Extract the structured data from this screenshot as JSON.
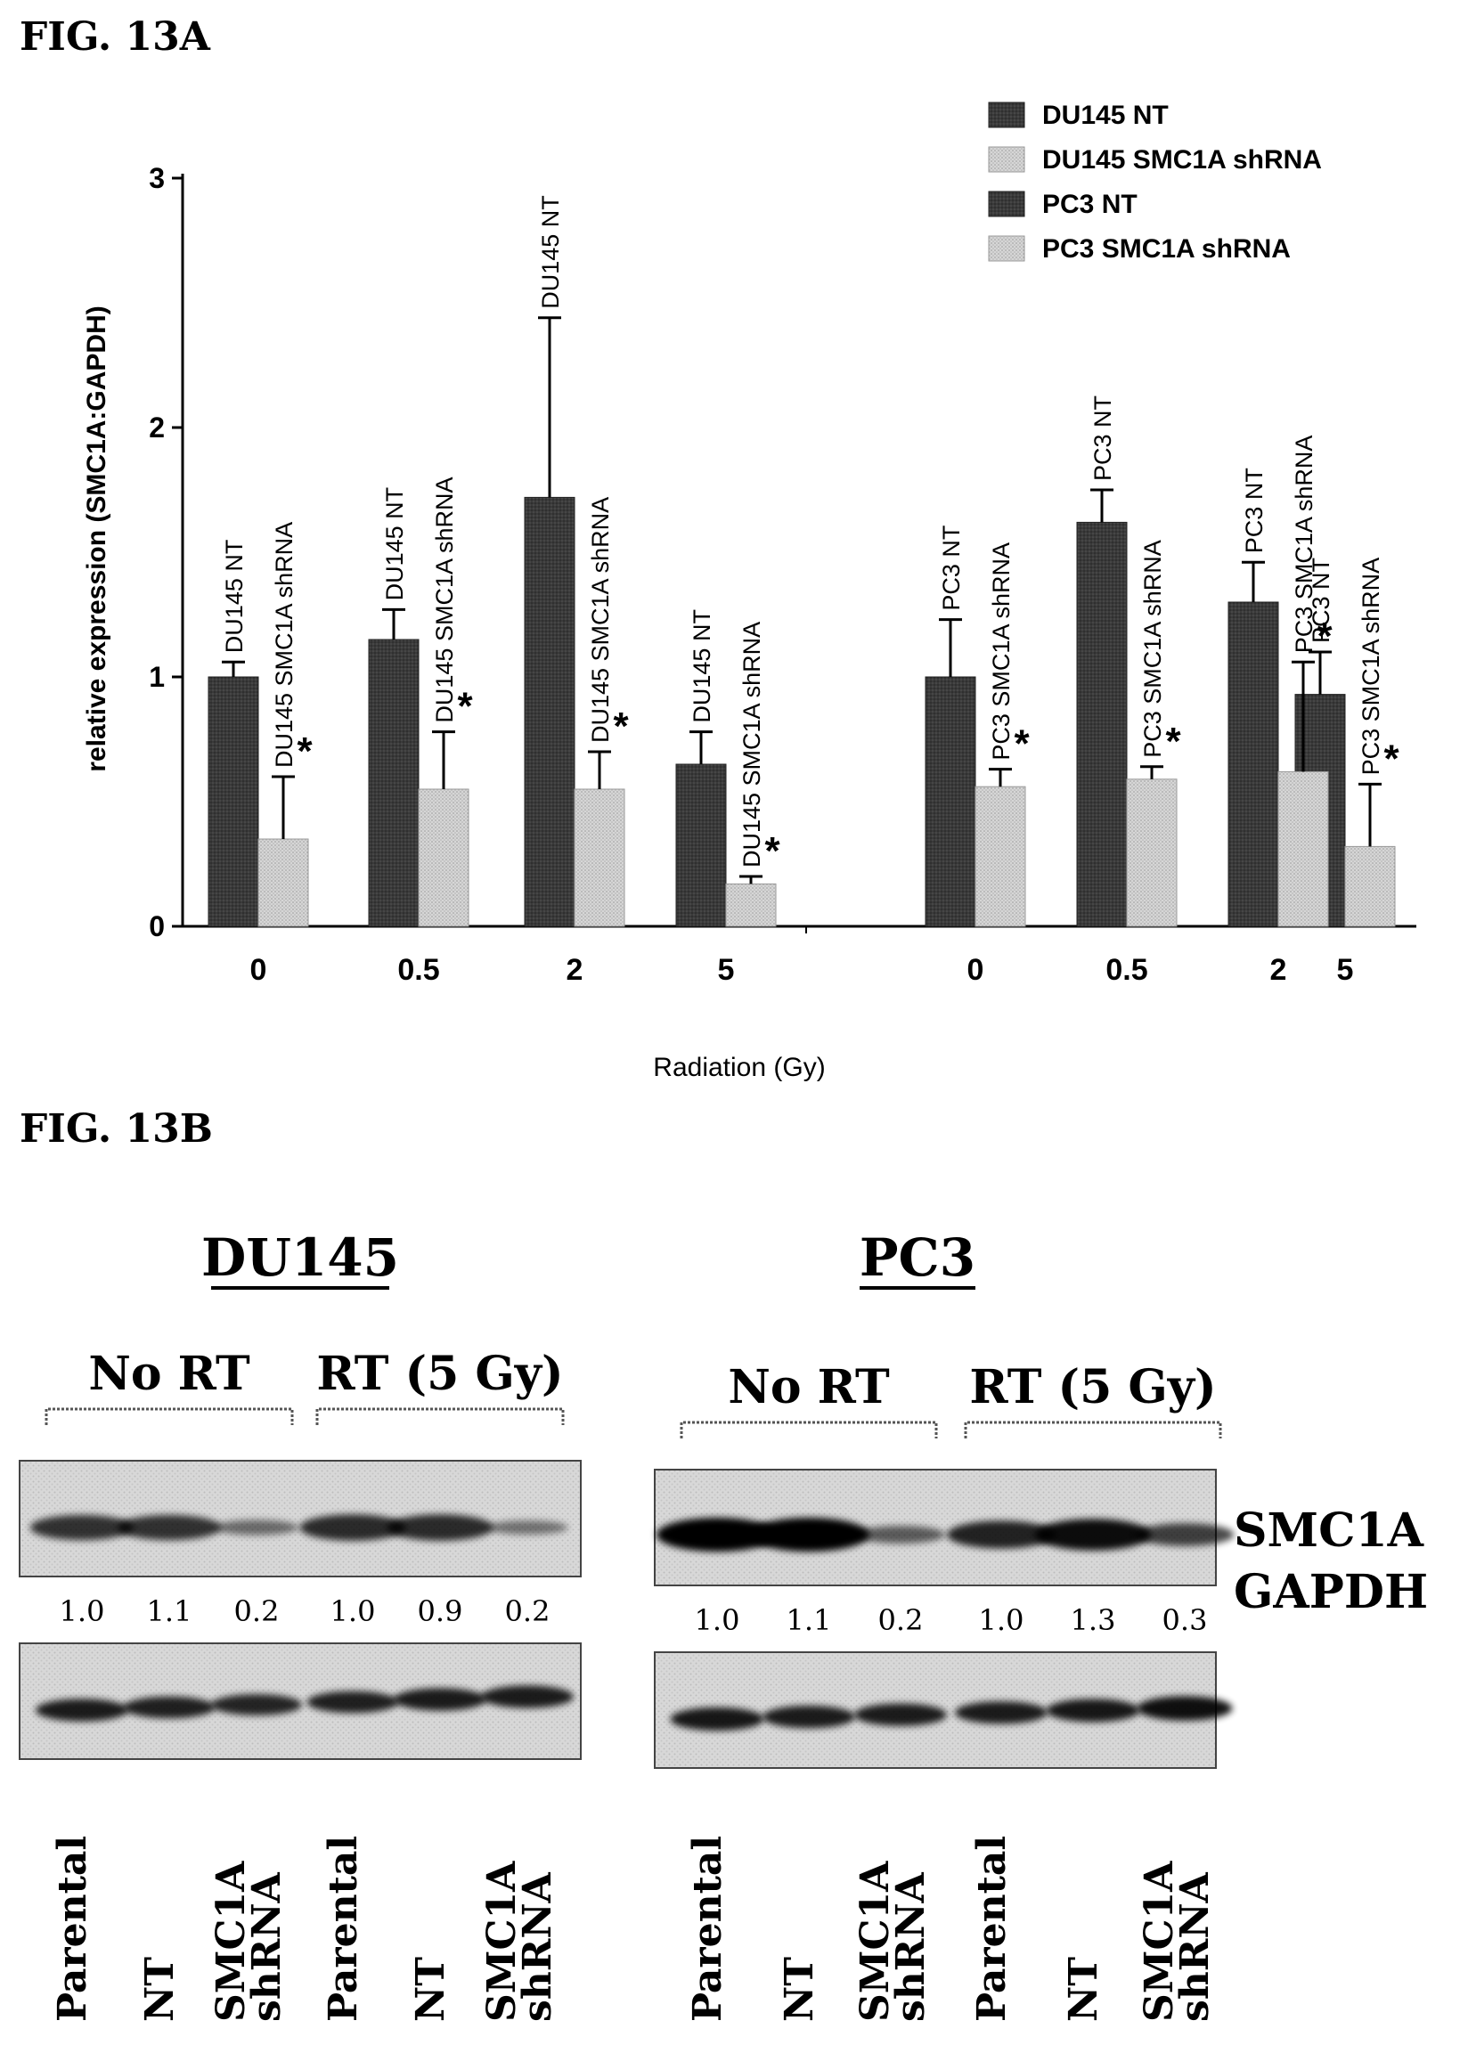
{
  "fig_a_label": "FIG. 13A",
  "fig_b_label": "FIG. 13B",
  "chart_data": {
    "type": "bar",
    "title": "",
    "xlabel": "Radiation (Gy)",
    "ylabel": "relative expression (SMC1A:GAPDH)",
    "ylim": [
      0,
      3
    ],
    "yticks": [
      "0",
      "1",
      "2",
      "3"
    ],
    "grid": false,
    "legend_position": "top-right",
    "groups": [
      {
        "name": "DU145",
        "categories": [
          "0",
          "0.5",
          "2",
          "5"
        ]
      },
      {
        "name": "PC3",
        "categories": [
          "0",
          "0.5",
          "2",
          "5"
        ]
      }
    ],
    "series": [
      {
        "name": "DU145 NT",
        "group": 0,
        "color": "#3a3a3a",
        "values": [
          1.0,
          1.15,
          1.72,
          0.65
        ],
        "errors": [
          0.06,
          0.12,
          0.72,
          0.13
        ]
      },
      {
        "name": "DU145 SMC1A shRNA",
        "group": 0,
        "color": "#cfcfcf",
        "values": [
          0.35,
          0.55,
          0.55,
          0.17
        ],
        "errors": [
          0.25,
          0.23,
          0.15,
          0.03
        ]
      },
      {
        "name": "PC3 NT",
        "group": 1,
        "color": "#3a3a3a",
        "values": [
          1.0,
          1.62,
          1.3,
          0.93
        ],
        "errors": [
          0.23,
          0.13,
          0.16,
          0.17
        ]
      },
      {
        "name": "PC3 SMC1A shRNA",
        "group": 1,
        "color": "#cfcfcf",
        "values": [
          0.56,
          0.59,
          0.62,
          0.32
        ],
        "errors": [
          0.07,
          0.05,
          0.44,
          0.25
        ]
      }
    ],
    "significance_marker": "*",
    "significant_series": [
      1,
      3
    ]
  },
  "blot": {
    "panels": [
      {
        "title": "DU145",
        "condition_labels": [
          "No RT",
          "RT (5 Gy)"
        ],
        "quantification": [
          "1.0",
          "1.1",
          "0.2",
          "1.0",
          "0.9",
          "0.2"
        ],
        "top_band_intensity": [
          0.65,
          0.65,
          0.25,
          0.7,
          0.7,
          0.2
        ],
        "bottom_band_intensity": [
          0.8,
          0.75,
          0.7,
          0.75,
          0.8,
          0.8
        ],
        "lane_labels": [
          [
            "Parental"
          ],
          [
            "NT"
          ],
          [
            "SMC1A",
            "shRNA"
          ],
          [
            "Parental"
          ],
          [
            "NT"
          ],
          [
            "SMC1A",
            "shRNA"
          ]
        ]
      },
      {
        "title": "PC3",
        "condition_labels": [
          "No RT",
          "RT (5 Gy)"
        ],
        "quantification": [
          "1.0",
          "1.1",
          "0.2",
          "1.0",
          "1.3",
          "0.3"
        ],
        "top_band_intensity": [
          1.0,
          1.0,
          0.35,
          0.75,
          0.9,
          0.55
        ],
        "bottom_band_intensity": [
          0.85,
          0.8,
          0.8,
          0.8,
          0.85,
          0.95
        ],
        "lane_labels": [
          [
            "Parental"
          ],
          [
            "NT"
          ],
          [
            "SMC1A",
            "shRNA"
          ],
          [
            "Parental"
          ],
          [
            "NT"
          ],
          [
            "SMC1A",
            "shRNA"
          ]
        ]
      }
    ],
    "band_labels": [
      "SMC1A",
      "GAPDH"
    ]
  }
}
